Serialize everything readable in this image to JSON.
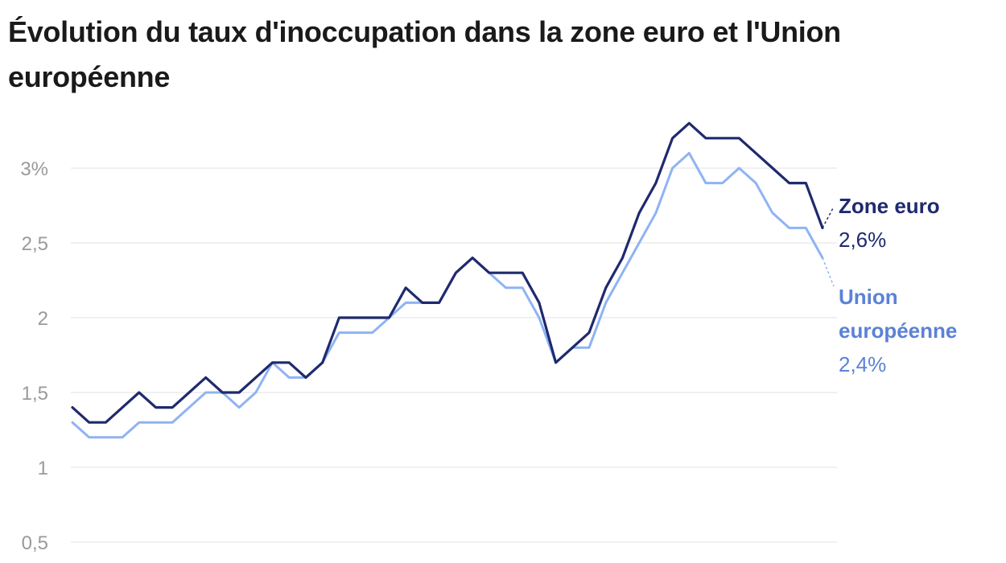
{
  "title": "Évolution du taux d'inoccupation dans la zone euro et l'Union européenne",
  "chart_data": {
    "type": "line",
    "title": "Évolution du taux d'inoccupation dans la zone euro et l'Union européenne",
    "xlabel": "",
    "ylabel": "",
    "ylim": [
      0.5,
      3.5
    ],
    "yticks": [
      {
        "value": 0.5,
        "label": "0,5"
      },
      {
        "value": 1,
        "label": "1"
      },
      {
        "value": 1.5,
        "label": "1,5"
      },
      {
        "value": 2,
        "label": "2"
      },
      {
        "value": 2.5,
        "label": "2,5"
      },
      {
        "value": 3,
        "label": "3%"
      }
    ],
    "grid": true,
    "legend": "direct labels at right",
    "series": [
      {
        "name": "Zone euro",
        "end_label": "2,6%",
        "color": "#1f2a6e",
        "values": [
          1.4,
          1.3,
          1.3,
          1.4,
          1.5,
          1.4,
          1.4,
          1.5,
          1.6,
          1.5,
          1.5,
          1.6,
          1.7,
          1.7,
          1.6,
          1.7,
          2.0,
          2.0,
          2.0,
          2.0,
          2.2,
          2.1,
          2.1,
          2.3,
          2.4,
          2.3,
          2.3,
          2.3,
          2.1,
          1.7,
          1.8,
          1.9,
          2.2,
          2.4,
          2.7,
          2.9,
          3.2,
          3.3,
          3.2,
          3.2,
          3.2,
          3.1,
          3.0,
          2.9,
          2.9,
          2.6
        ]
      },
      {
        "name": "Union européenne",
        "end_label": "2,4%",
        "color": "#8fb3f4",
        "values": [
          1.3,
          1.2,
          1.2,
          1.2,
          1.3,
          1.3,
          1.3,
          1.4,
          1.5,
          1.5,
          1.4,
          1.5,
          1.7,
          1.6,
          1.6,
          1.7,
          1.9,
          1.9,
          1.9,
          2.0,
          2.1,
          2.1,
          2.1,
          2.3,
          2.4,
          2.3,
          2.2,
          2.2,
          2.0,
          1.7,
          1.8,
          1.8,
          2.1,
          2.3,
          2.5,
          2.7,
          3.0,
          3.1,
          2.9,
          2.9,
          3.0,
          2.9,
          2.7,
          2.6,
          2.6,
          2.4
        ]
      }
    ],
    "label_colors": {
      "Zone euro": "#1f2a6e",
      "Union européenne": "#5b82d6"
    }
  }
}
